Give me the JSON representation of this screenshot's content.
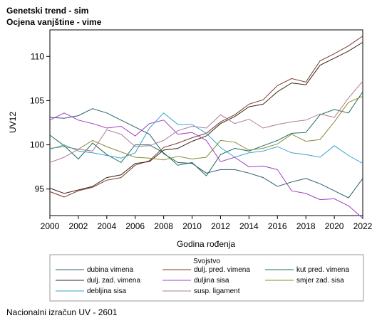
{
  "titles": {
    "line1": "Genetski trend - sim",
    "line2": "Ocjena vanjštine - vime"
  },
  "footnote": "Nacionalni izračun UV - 2601",
  "chart_data": {
    "type": "line",
    "xlabel": "Godina rođenja",
    "ylabel": "UV12",
    "xlim": [
      2000,
      2022
    ],
    "ylim": [
      92,
      113
    ],
    "xticks": [
      2000,
      2002,
      2004,
      2006,
      2008,
      2010,
      2012,
      2014,
      2016,
      2018,
      2020,
      2022
    ],
    "yticks": [
      95,
      100,
      105,
      110
    ],
    "legend_title": "Svojstvo",
    "legend_position": "bottom",
    "x": [
      2000,
      2001,
      2002,
      2003,
      2004,
      2005,
      2006,
      2007,
      2008,
      2009,
      2010,
      2011,
      2012,
      2013,
      2014,
      2015,
      2016,
      2017,
      2018,
      2019,
      2020,
      2021,
      2022
    ],
    "series": [
      {
        "name": "dubina vimena",
        "color": "#2a5d6e",
        "values": [
          103.1,
          103.0,
          103.3,
          104.1,
          103.6,
          102.8,
          102.0,
          101.2,
          99.0,
          98.0,
          97.9,
          96.8,
          97.2,
          97.2,
          96.8,
          96.3,
          95.3,
          95.8,
          96.2,
          95.6,
          94.8,
          94.0,
          96.2
        ]
      },
      {
        "name": "dulj. pred. vimena",
        "color": "#7a3b2a",
        "values": [
          94.7,
          94.1,
          94.8,
          95.2,
          96.0,
          96.3,
          97.7,
          98.2,
          99.7,
          100.2,
          100.8,
          101.3,
          102.6,
          103.4,
          104.6,
          105.1,
          106.7,
          107.5,
          107.1,
          109.5,
          110.3,
          111.2,
          112.3
        ]
      },
      {
        "name": "kut pred. vimena",
        "color": "#1f6a5a",
        "values": [
          101.1,
          99.9,
          98.4,
          100.2,
          98.9,
          98.0,
          100.0,
          100.0,
          99.1,
          97.7,
          98.0,
          96.5,
          98.9,
          99.6,
          99.3,
          99.9,
          100.5,
          101.3,
          101.4,
          103.4,
          104.0,
          103.6,
          106.0
        ]
      },
      {
        "name": "dulj. zad. vimena",
        "color": "#3b2418",
        "values": [
          95.1,
          94.5,
          94.9,
          95.3,
          96.3,
          96.6,
          97.9,
          98.1,
          99.4,
          99.6,
          100.4,
          101.0,
          102.4,
          103.2,
          104.3,
          104.6,
          106.0,
          107.0,
          106.8,
          109.0,
          109.8,
          110.6,
          111.6
        ]
      },
      {
        "name": "duljina sisa",
        "color": "#a040c0",
        "values": [
          102.8,
          103.6,
          102.8,
          102.4,
          101.9,
          102.1,
          101.0,
          102.4,
          102.8,
          101.2,
          101.4,
          100.5,
          98.1,
          98.6,
          97.5,
          97.6,
          97.2,
          94.8,
          94.5,
          93.8,
          93.9,
          93.1,
          91.7
        ]
      },
      {
        "name": "smjer zad. sisa",
        "color": "#8a8a30",
        "values": [
          99.6,
          99.8,
          99.5,
          100.5,
          99.8,
          99.2,
          98.6,
          98.5,
          98.3,
          98.7,
          98.4,
          98.6,
          100.5,
          100.3,
          99.4,
          99.6,
          100.1,
          101.2,
          100.4,
          100.6,
          102.6,
          104.8,
          105.5
        ]
      },
      {
        "name": "debljina sisa",
        "color": "#3ba0d0",
        "values": [
          99.5,
          100.0,
          99.3,
          99.1,
          98.8,
          98.5,
          99.1,
          101.9,
          103.6,
          102.3,
          102.3,
          101.3,
          99.7,
          98.6,
          99.1,
          99.3,
          99.8,
          99.1,
          98.9,
          98.6,
          99.9,
          98.8,
          97.9
        ]
      },
      {
        "name": "susp. ligament",
        "color": "#b07a9a",
        "values": [
          98.0,
          98.6,
          99.5,
          99.3,
          101.7,
          101.2,
          99.8,
          99.9,
          100.5,
          101.6,
          102.1,
          101.9,
          103.4,
          102.4,
          102.9,
          101.9,
          102.3,
          102.6,
          102.8,
          103.5,
          103.1,
          105.3,
          107.2
        ]
      }
    ]
  }
}
